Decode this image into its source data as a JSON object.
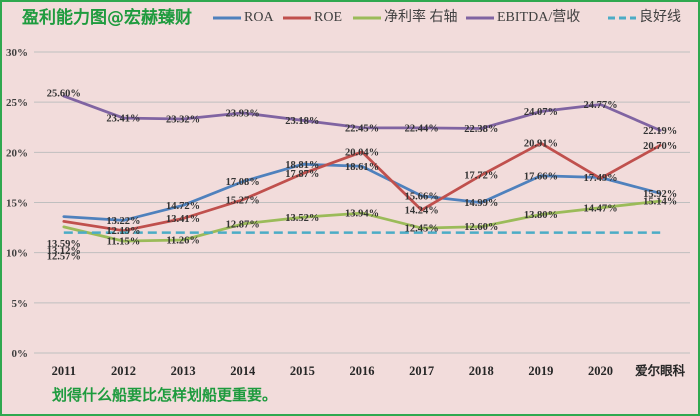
{
  "chart_data": {
    "type": "line",
    "title": "盈利能力图@宏赫臻财",
    "categories": [
      "2011",
      "2012",
      "2013",
      "2014",
      "2015",
      "2016",
      "2017",
      "2018",
      "2019",
      "2020",
      "爱尔眼科"
    ],
    "ylim": [
      0,
      30
    ],
    "y_ticks": [
      0,
      5,
      10,
      15,
      20,
      25,
      30
    ],
    "y_tick_labels": [
      "0%",
      "5%",
      "10%",
      "15%",
      "20%",
      "25%",
      "30%"
    ],
    "grid": true,
    "legend_position": "top",
    "series": [
      {
        "name": "ROA",
        "color": "#4f81bd",
        "style": "solid",
        "values": [
          13.59,
          13.22,
          14.72,
          17.08,
          18.81,
          18.61,
          15.66,
          14.99,
          17.66,
          17.49,
          15.92
        ],
        "labels": [
          "13.59%",
          "13.22%",
          "14.72%",
          "17.08%",
          "18.81%",
          "18.61%",
          "15.66%",
          "14.99%",
          "17.66%",
          "17.49%",
          "15.92%"
        ]
      },
      {
        "name": "ROE",
        "color": "#c0504d",
        "style": "solid",
        "values": [
          13.12,
          12.19,
          13.41,
          15.27,
          17.87,
          20.04,
          14.24,
          17.72,
          20.91,
          17.4,
          20.7
        ],
        "labels": [
          "13.12%",
          "12.19%",
          "13.41%",
          "15.27%",
          "17.87%",
          "20.04%",
          "14.24%",
          "17.72%",
          "20.91%",
          null,
          "20.70%"
        ]
      },
      {
        "name": "净利率 右轴",
        "color": "#9bbb59",
        "style": "solid",
        "values": [
          12.57,
          11.15,
          11.26,
          12.87,
          13.52,
          13.94,
          12.45,
          12.6,
          13.8,
          14.47,
          15.14
        ],
        "labels": [
          "12.57%",
          "11.15%",
          "11.26%",
          "12.87%",
          "13.52%",
          "13.94%",
          "12.45%",
          "12.60%",
          "13.80%",
          "14.47%",
          "15.14%"
        ]
      },
      {
        "name": "EBITDA/营收",
        "color": "#8064a2",
        "style": "solid",
        "values": [
          25.6,
          23.41,
          23.32,
          23.93,
          23.18,
          22.45,
          22.44,
          22.38,
          24.07,
          24.77,
          22.19
        ],
        "labels": [
          "25.60%",
          "23.41%",
          "23.32%",
          "23.93%",
          "23.18%",
          "22.45%",
          "22.44%",
          "22.38%",
          "24.07%",
          "24.77%",
          "22.19%"
        ]
      },
      {
        "name": "良好线",
        "color": "#4bacc6",
        "style": "dashed",
        "values": [
          12,
          12,
          12,
          12,
          12,
          12,
          12,
          12,
          12,
          12,
          12
        ]
      }
    ]
  },
  "footer_text": "划得什么船要比怎样划船更重要。",
  "colors": {
    "background": "#f2dcdb",
    "frame_border": "#2fa84f",
    "title_text": "#1e9b3e"
  }
}
